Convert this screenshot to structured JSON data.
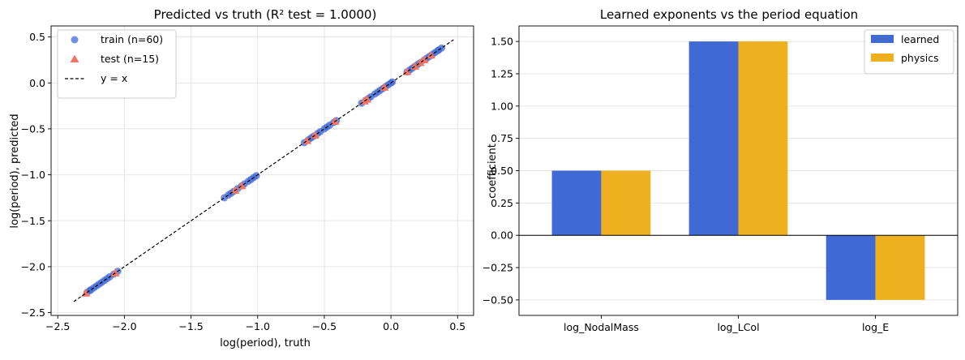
{
  "chart_data": [
    {
      "type": "scatter",
      "title": "Predicted vs truth  (R² test = 1.0000)",
      "xlabel": "log(period), truth",
      "ylabel": "log(period), predicted",
      "xlim": [
        -2.55,
        0.62
      ],
      "ylim": [
        -2.53,
        0.62
      ],
      "xticks": [
        -2.5,
        -2.0,
        -1.5,
        -1.0,
        -0.5,
        0.0,
        0.5
      ],
      "xtick_labels": [
        "−2.5",
        "−2.0",
        "−1.5",
        "−1.0",
        "−0.5",
        "0.0",
        "0.5"
      ],
      "yticks": [
        -2.5,
        -2.0,
        -1.5,
        -1.0,
        -0.5,
        0.0,
        0.5
      ],
      "ytick_labels": [
        "−2.5",
        "−2.0",
        "−1.5",
        "−1.0",
        "−0.5",
        "0.0",
        "0.5"
      ],
      "grid": true,
      "legend_position": "top-left",
      "series": [
        {
          "name": "train (n=60)",
          "marker": "circle",
          "color": "#4169d6",
          "x": [
            -2.28,
            -2.26,
            -2.25,
            -2.23,
            -2.21,
            -2.19,
            -2.17,
            -2.15,
            -2.13,
            -2.11,
            -2.08,
            -2.05,
            -1.25,
            -1.22,
            -1.2,
            -1.18,
            -1.15,
            -1.12,
            -1.1,
            -1.07,
            -1.05,
            -1.03,
            -1.01,
            -0.65,
            -0.62,
            -0.6,
            -0.58,
            -0.55,
            -0.53,
            -0.5,
            -0.48,
            -0.46,
            -0.43,
            -0.41,
            -0.22,
            -0.19,
            -0.17,
            -0.15,
            -0.12,
            -0.1,
            -0.08,
            -0.06,
            -0.04,
            -0.02,
            0.0,
            0.01,
            0.12,
            0.14,
            0.16,
            0.18,
            0.2,
            0.22,
            0.25,
            0.27,
            0.29,
            0.31,
            0.33,
            0.35,
            0.36,
            0.38
          ],
          "y": [
            -2.28,
            -2.26,
            -2.25,
            -2.23,
            -2.21,
            -2.19,
            -2.17,
            -2.15,
            -2.13,
            -2.11,
            -2.08,
            -2.05,
            -1.25,
            -1.22,
            -1.2,
            -1.18,
            -1.15,
            -1.12,
            -1.1,
            -1.07,
            -1.05,
            -1.03,
            -1.01,
            -0.65,
            -0.62,
            -0.6,
            -0.58,
            -0.55,
            -0.53,
            -0.5,
            -0.48,
            -0.46,
            -0.43,
            -0.41,
            -0.22,
            -0.19,
            -0.17,
            -0.15,
            -0.12,
            -0.1,
            -0.08,
            -0.06,
            -0.04,
            -0.02,
            0.0,
            0.01,
            0.12,
            0.14,
            0.16,
            0.18,
            0.2,
            0.22,
            0.25,
            0.27,
            0.29,
            0.31,
            0.33,
            0.35,
            0.36,
            0.38
          ]
        },
        {
          "name": "test (n=15)",
          "marker": "triangle",
          "color": "#f47563",
          "x": [
            -2.29,
            -2.07,
            -1.17,
            -1.12,
            -0.63,
            -0.57,
            -0.42,
            -0.2,
            -0.18,
            -0.05,
            0.12,
            0.18,
            0.22,
            0.25,
            0.3
          ],
          "y": [
            -2.29,
            -2.07,
            -1.17,
            -1.12,
            -0.63,
            -0.57,
            -0.42,
            -0.2,
            -0.18,
            -0.05,
            0.12,
            0.18,
            0.22,
            0.25,
            0.3
          ]
        }
      ],
      "reference_line": {
        "name": "y = x",
        "x": [
          -2.38,
          0.47
        ],
        "y": [
          -2.38,
          0.47
        ],
        "style": "dashed",
        "color": "#000000"
      }
    },
    {
      "type": "bar",
      "title": "Learned exponents vs the period equation",
      "xlabel": "",
      "ylabel": "coefficient",
      "categories": [
        "log_NodalMass",
        "log_LCol",
        "log_E"
      ],
      "ylim": [
        -0.62,
        1.62
      ],
      "yticks": [
        -0.5,
        -0.25,
        0.0,
        0.25,
        0.5,
        0.75,
        1.0,
        1.25,
        1.5
      ],
      "ytick_labels": [
        "−0.50",
        "−0.25",
        "0.00",
        "0.25",
        "0.50",
        "0.75",
        "1.00",
        "1.25",
        "1.50"
      ],
      "grid": true,
      "legend_position": "top-right",
      "series": [
        {
          "name": "learned",
          "color": "#4169d6",
          "values": [
            0.5,
            1.5,
            -0.5
          ]
        },
        {
          "name": "physics",
          "color": "#edb11f",
          "values": [
            0.5,
            1.5,
            -0.5
          ]
        }
      ]
    }
  ]
}
